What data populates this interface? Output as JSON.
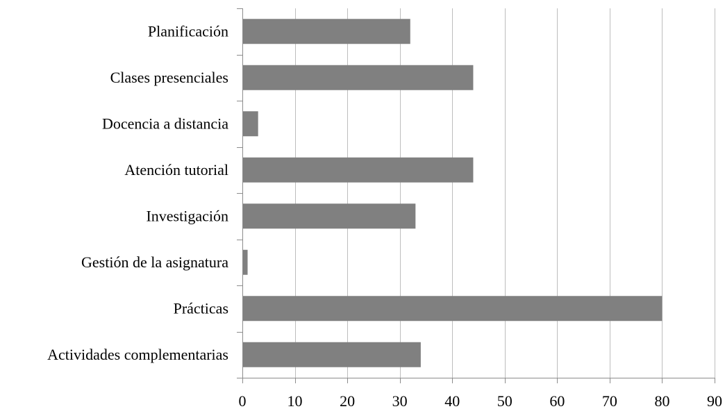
{
  "chart_data": {
    "type": "bar",
    "orientation": "horizontal",
    "categories": [
      "Planificación",
      "Clases presenciales",
      "Docencia a distancia",
      "Atención tutorial",
      "Investigación",
      "Gestión de la asignatura",
      "Prácticas",
      "Actividades complementarias"
    ],
    "values": [
      32,
      44,
      3,
      44,
      33,
      1,
      80,
      34
    ],
    "xlim": [
      0,
      90
    ],
    "x_ticks": [
      0,
      10,
      20,
      30,
      40,
      50,
      60,
      70,
      80,
      90
    ],
    "title": "",
    "xlabel": "",
    "ylabel": "",
    "grid": "vertical",
    "legend": "none",
    "bar_color": "#808080"
  }
}
